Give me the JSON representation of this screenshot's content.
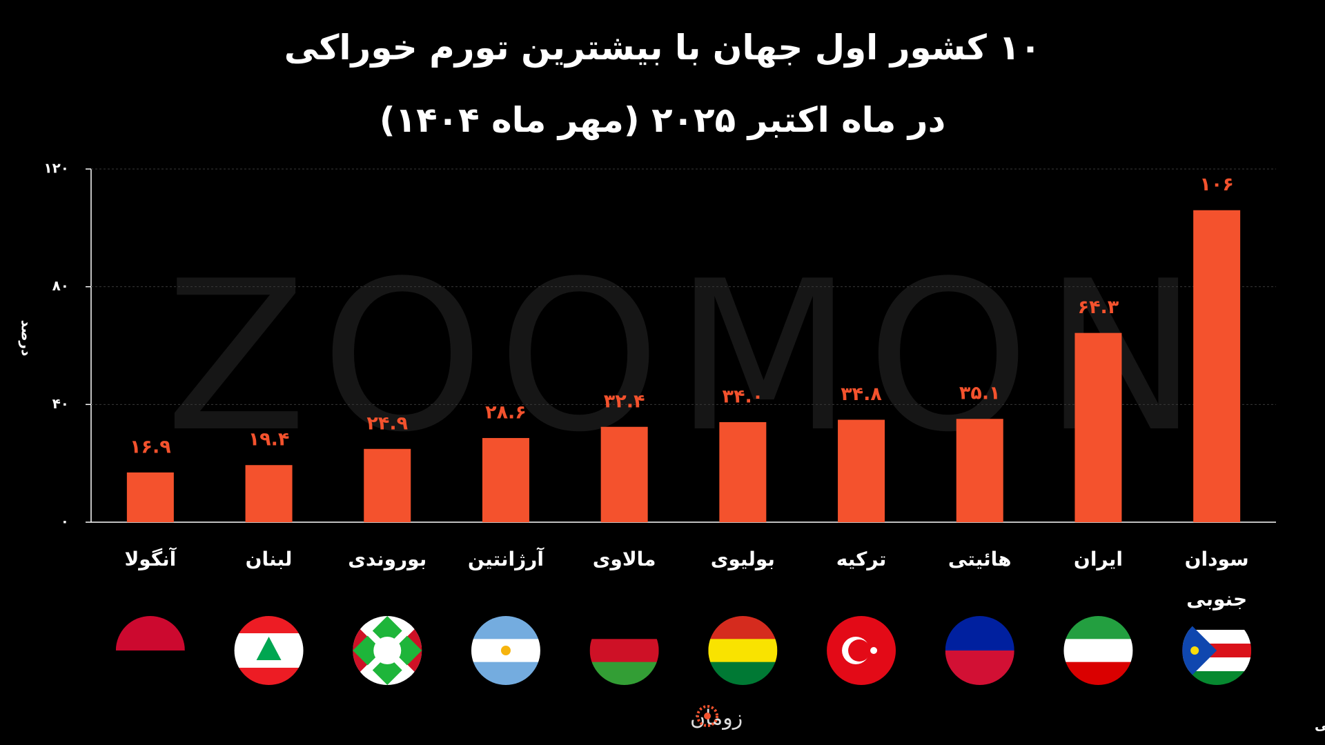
{
  "chart_data": {
    "type": "bar",
    "title": "۱۰ کشور اول جهان با بیشترین تورم خوراکی",
    "subtitle": "در ماه اکتبر ۲۰۲۵ (مهر ماه ۱۴۰۴)",
    "y_label": "درصد",
    "categories": [
      "آنگولا",
      "لبنان",
      "بوروندی",
      "آرژانتین",
      "مالاوی",
      "بولیوی",
      "ترکیه",
      "هائیتی",
      "ایران",
      "سودان\nجنوبی"
    ],
    "values": [
      16.9,
      19.4,
      24.9,
      28.6,
      32.4,
      34.0,
      34.8,
      35.1,
      64.3,
      106
    ],
    "value_labels": [
      "۱۶.۹",
      "۱۹.۴",
      "۲۴.۹",
      "۲۸.۶",
      "۳۲.۴",
      "۳۴.۰",
      "۳۴.۸",
      "۳۵.۱",
      "۶۴.۳",
      "۱۰۶"
    ],
    "color": "#f4522d",
    "ylim": [
      0,
      120
    ],
    "yticks": [
      {
        "value": 0,
        "label": "۰"
      },
      {
        "value": 40,
        "label": "۴۰"
      },
      {
        "value": 80,
        "label": "۸۰"
      },
      {
        "value": 120,
        "label": "۱۲۰"
      }
    ],
    "grid": true,
    "watermark": "ZOOMON",
    "logo": "زومان",
    "source": "منبع داده: بانک جهانی"
  }
}
